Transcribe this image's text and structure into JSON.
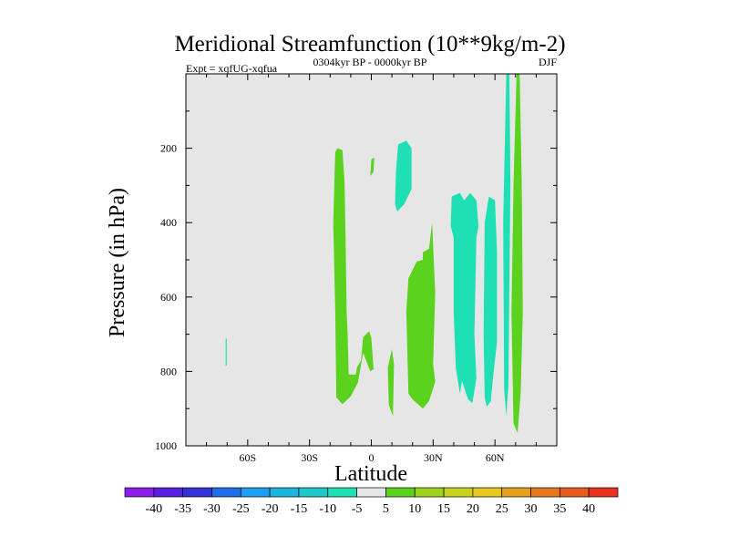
{
  "chart_data": {
    "type": "contour",
    "title": "Meridional Streamfunction (10**9kg/m-2)",
    "left_label": "Expt = xqfUG-xqfua",
    "center_label": "0304kyr BP - 0000kyr BP",
    "right_label": "DJF",
    "xlabel": "Latitude",
    "ylabel": "Pressure (in hPa)",
    "xlim": [
      -90,
      90
    ],
    "ylim": [
      0,
      1000
    ],
    "y_inverted": true,
    "x_ticks": [
      {
        "value": -60,
        "label": "60S"
      },
      {
        "value": -30,
        "label": "30S"
      },
      {
        "value": 0,
        "label": "0"
      },
      {
        "value": 30,
        "label": "30N"
      },
      {
        "value": 60,
        "label": "60N"
      }
    ],
    "y_ticks": [
      {
        "value": 200,
        "label": "200"
      },
      {
        "value": 400,
        "label": "400"
      },
      {
        "value": 600,
        "label": "600"
      },
      {
        "value": 800,
        "label": "800"
      },
      {
        "value": 1000,
        "label": "1000"
      }
    ],
    "background_color": "#e6e6e6",
    "regions": [
      {
        "level": "5 to 10",
        "color": "#5ad21e",
        "points": [
          [
            -16.5,
            200
          ],
          [
            -14,
            205
          ],
          [
            -13,
            290
          ],
          [
            -12.5,
            440
          ],
          [
            -12,
            640
          ],
          [
            -11.5,
            700
          ],
          [
            -11,
            808
          ],
          [
            -7.5,
            808
          ],
          [
            -7,
            790
          ],
          [
            -5,
            770
          ],
          [
            -4,
            708
          ],
          [
            -1,
            692
          ],
          [
            0,
            710
          ],
          [
            1,
            790
          ],
          [
            1.5,
            792
          ],
          [
            -0.5,
            800
          ],
          [
            -4,
            750
          ],
          [
            -6.5,
            830
          ],
          [
            -10,
            867
          ],
          [
            -14,
            888
          ],
          [
            -17,
            870
          ],
          [
            -17.5,
            640
          ],
          [
            -18.5,
            400
          ],
          [
            -17.5,
            210
          ]
        ]
      },
      {
        "level": "5 to 10",
        "color": "#5ad21e",
        "points": [
          [
            10,
            740
          ],
          [
            11,
            780
          ],
          [
            10.5,
            920
          ],
          [
            8.5,
            890
          ],
          [
            8,
            790
          ]
        ]
      },
      {
        "level": "5 to 10",
        "color": "#5ad21e",
        "points": [
          [
            0,
            230
          ],
          [
            1.5,
            225
          ],
          [
            1,
            263
          ],
          [
            -0.5,
            275
          ]
        ]
      },
      {
        "level": "5 to 10",
        "color": "#5ad21e",
        "points": [
          [
            25,
            480
          ],
          [
            28,
            470
          ],
          [
            29.5,
            400
          ],
          [
            31,
            590
          ],
          [
            30,
            780
          ],
          [
            31,
            828
          ],
          [
            28,
            880
          ],
          [
            25,
            900
          ],
          [
            20,
            875
          ],
          [
            18,
            860
          ],
          [
            17,
            640
          ],
          [
            18,
            550
          ],
          [
            22,
            505
          ],
          [
            25,
            500
          ]
        ]
      },
      {
        "level": "5 to 10",
        "color": "#5ad21e",
        "points": [
          [
            70.5,
            0
          ],
          [
            72,
            0
          ],
          [
            73,
            300
          ],
          [
            73.5,
            640
          ],
          [
            72.5,
            860
          ],
          [
            71,
            965
          ],
          [
            69,
            940
          ],
          [
            68,
            640
          ],
          [
            69,
            300
          ]
        ]
      },
      {
        "level": "-10 to -5",
        "color": "#1ee0b4",
        "points": [
          [
            13,
            190
          ],
          [
            17,
            180
          ],
          [
            19.5,
            200
          ],
          [
            19.5,
            310
          ],
          [
            16,
            350
          ],
          [
            12.5,
            370
          ],
          [
            11.5,
            350
          ],
          [
            12,
            260
          ]
        ]
      },
      {
        "level": "-10 to -5",
        "color": "#1ee0b4",
        "points": [
          [
            39,
            330
          ],
          [
            43,
            320
          ],
          [
            45,
            340
          ],
          [
            48,
            320
          ],
          [
            51,
            340
          ],
          [
            52,
            410
          ],
          [
            51,
            440
          ],
          [
            50,
            700
          ],
          [
            51,
            820
          ],
          [
            49,
            885
          ],
          [
            47,
            875
          ],
          [
            46,
            860
          ],
          [
            44,
            825
          ],
          [
            43,
            860
          ],
          [
            41,
            790
          ],
          [
            40,
            640
          ],
          [
            40,
            440
          ],
          [
            38.5,
            410
          ]
        ]
      },
      {
        "level": "-10 to -5",
        "color": "#1ee0b4",
        "points": [
          [
            57,
            330
          ],
          [
            60,
            340
          ],
          [
            61,
            480
          ],
          [
            61,
            720
          ],
          [
            59,
            820
          ],
          [
            58,
            880
          ],
          [
            56,
            895
          ],
          [
            55,
            870
          ],
          [
            54.5,
            700
          ],
          [
            55,
            400
          ]
        ]
      },
      {
        "level": "-10 to -5",
        "color": "#1ee0b4",
        "points": [
          [
            65.5,
            0
          ],
          [
            67,
            0
          ],
          [
            67.5,
            300
          ],
          [
            66.5,
            840
          ],
          [
            65.5,
            920
          ],
          [
            64.5,
            850
          ],
          [
            64,
            400
          ]
        ]
      },
      {
        "level": "-10 to -5",
        "color": "#1ee0b4",
        "points": [
          [
            -70.7,
            712
          ],
          [
            -70.2,
            712
          ],
          [
            -70.2,
            785
          ],
          [
            -70.7,
            785
          ]
        ]
      }
    ],
    "colorbar": {
      "labels": [
        "-40",
        "-35",
        "-30",
        "-25",
        "-20",
        "-15",
        "-10",
        "-5",
        "5",
        "10",
        "15",
        "20",
        "25",
        "30",
        "35",
        "40"
      ],
      "colors": [
        "#8c1ee8",
        "#5a1ee0",
        "#3232d8",
        "#1e6ee8",
        "#1e9ef0",
        "#1eb4e0",
        "#1ec8c8",
        "#1ee0b4",
        "#e6e6e6",
        "#5ad21e",
        "#9ed21e",
        "#c8d21e",
        "#e6c81e",
        "#e6a01e",
        "#e6781e",
        "#e65a1e",
        "#e6321e"
      ]
    }
  }
}
